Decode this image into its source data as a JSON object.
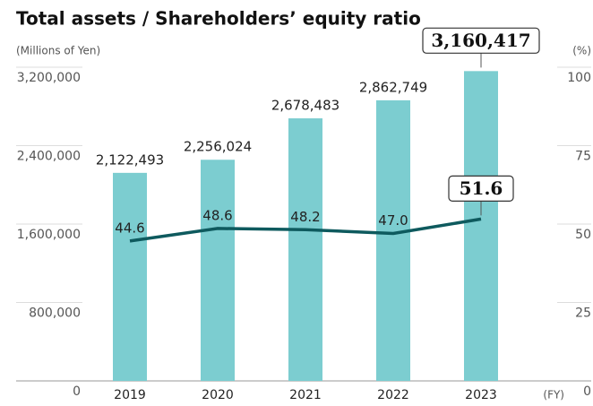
{
  "chart_data": {
    "type": "bar",
    "title": "Total assets / Shareholders’ equity ratio",
    "y_label": "(Millions of Yen)",
    "y2_label": "(%)",
    "x_label": "(FY)",
    "categories": [
      "2019",
      "2020",
      "2021",
      "2022",
      "2023"
    ],
    "series": [
      {
        "type": "bar",
        "color": "#7ccdd0",
        "values": [
          2122493,
          2256024,
          2678483,
          2862749,
          3160417
        ],
        "value_labels": [
          "2,122,493",
          "2,256,024",
          "2,678,483",
          "2,862,749",
          "3,160,417"
        ]
      },
      {
        "type": "line",
        "axis": "y2",
        "color": "#0e5a5e",
        "values": [
          44.6,
          48.6,
          48.2,
          47.0,
          51.6
        ],
        "value_labels": [
          "44.6",
          "48.6",
          "48.2",
          "47.0",
          "51.6"
        ]
      }
    ],
    "ylim": [
      0,
      3200000
    ],
    "yticks": [
      0,
      {
        "value": 800000,
        "label": "800,000"
      },
      {
        "value": 1600000,
        "label": "1,600,000"
      },
      {
        "value": 2400000,
        "label": "2,400,000"
      },
      {
        "value": 3200000,
        "label": "3,200,000"
      }
    ],
    "y2lim": [
      0,
      100
    ],
    "y2ticks": [
      0,
      25,
      50,
      75,
      100
    ]
  }
}
